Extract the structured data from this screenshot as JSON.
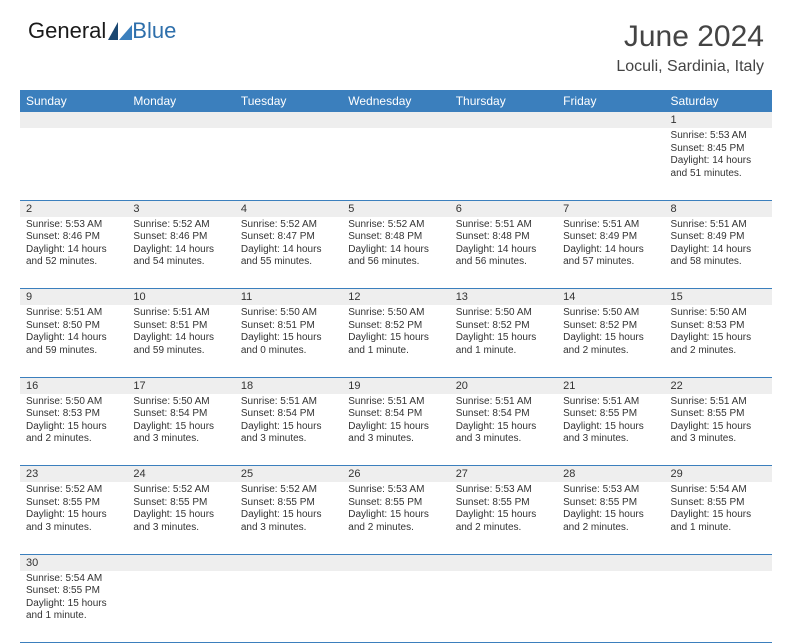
{
  "brand": {
    "name_a": "General",
    "name_b": "Blue"
  },
  "title": {
    "month": "June 2024",
    "location": "Loculi, Sardinia, Italy"
  },
  "colors": {
    "header_bg": "#3b7fbd",
    "header_text": "#ffffff",
    "daynum_bg": "#eeeeee",
    "border": "#3b7fbd",
    "text": "#333333",
    "title_text": "#444444",
    "logo_blue": "#2e6fab"
  },
  "weekdays": [
    "Sunday",
    "Monday",
    "Tuesday",
    "Wednesday",
    "Thursday",
    "Friday",
    "Saturday"
  ],
  "first_weekday_index": 6,
  "days": [
    {
      "n": 1,
      "sr": "5:53 AM",
      "ss": "8:45 PM",
      "dl": "14 hours and 51 minutes."
    },
    {
      "n": 2,
      "sr": "5:53 AM",
      "ss": "8:46 PM",
      "dl": "14 hours and 52 minutes."
    },
    {
      "n": 3,
      "sr": "5:52 AM",
      "ss": "8:46 PM",
      "dl": "14 hours and 54 minutes."
    },
    {
      "n": 4,
      "sr": "5:52 AM",
      "ss": "8:47 PM",
      "dl": "14 hours and 55 minutes."
    },
    {
      "n": 5,
      "sr": "5:52 AM",
      "ss": "8:48 PM",
      "dl": "14 hours and 56 minutes."
    },
    {
      "n": 6,
      "sr": "5:51 AM",
      "ss": "8:48 PM",
      "dl": "14 hours and 56 minutes."
    },
    {
      "n": 7,
      "sr": "5:51 AM",
      "ss": "8:49 PM",
      "dl": "14 hours and 57 minutes."
    },
    {
      "n": 8,
      "sr": "5:51 AM",
      "ss": "8:49 PM",
      "dl": "14 hours and 58 minutes."
    },
    {
      "n": 9,
      "sr": "5:51 AM",
      "ss": "8:50 PM",
      "dl": "14 hours and 59 minutes."
    },
    {
      "n": 10,
      "sr": "5:51 AM",
      "ss": "8:51 PM",
      "dl": "14 hours and 59 minutes."
    },
    {
      "n": 11,
      "sr": "5:50 AM",
      "ss": "8:51 PM",
      "dl": "15 hours and 0 minutes."
    },
    {
      "n": 12,
      "sr": "5:50 AM",
      "ss": "8:52 PM",
      "dl": "15 hours and 1 minute."
    },
    {
      "n": 13,
      "sr": "5:50 AM",
      "ss": "8:52 PM",
      "dl": "15 hours and 1 minute."
    },
    {
      "n": 14,
      "sr": "5:50 AM",
      "ss": "8:52 PM",
      "dl": "15 hours and 2 minutes."
    },
    {
      "n": 15,
      "sr": "5:50 AM",
      "ss": "8:53 PM",
      "dl": "15 hours and 2 minutes."
    },
    {
      "n": 16,
      "sr": "5:50 AM",
      "ss": "8:53 PM",
      "dl": "15 hours and 2 minutes."
    },
    {
      "n": 17,
      "sr": "5:50 AM",
      "ss": "8:54 PM",
      "dl": "15 hours and 3 minutes."
    },
    {
      "n": 18,
      "sr": "5:51 AM",
      "ss": "8:54 PM",
      "dl": "15 hours and 3 minutes."
    },
    {
      "n": 19,
      "sr": "5:51 AM",
      "ss": "8:54 PM",
      "dl": "15 hours and 3 minutes."
    },
    {
      "n": 20,
      "sr": "5:51 AM",
      "ss": "8:54 PM",
      "dl": "15 hours and 3 minutes."
    },
    {
      "n": 21,
      "sr": "5:51 AM",
      "ss": "8:55 PM",
      "dl": "15 hours and 3 minutes."
    },
    {
      "n": 22,
      "sr": "5:51 AM",
      "ss": "8:55 PM",
      "dl": "15 hours and 3 minutes."
    },
    {
      "n": 23,
      "sr": "5:52 AM",
      "ss": "8:55 PM",
      "dl": "15 hours and 3 minutes."
    },
    {
      "n": 24,
      "sr": "5:52 AM",
      "ss": "8:55 PM",
      "dl": "15 hours and 3 minutes."
    },
    {
      "n": 25,
      "sr": "5:52 AM",
      "ss": "8:55 PM",
      "dl": "15 hours and 3 minutes."
    },
    {
      "n": 26,
      "sr": "5:53 AM",
      "ss": "8:55 PM",
      "dl": "15 hours and 2 minutes."
    },
    {
      "n": 27,
      "sr": "5:53 AM",
      "ss": "8:55 PM",
      "dl": "15 hours and 2 minutes."
    },
    {
      "n": 28,
      "sr": "5:53 AM",
      "ss": "8:55 PM",
      "dl": "15 hours and 2 minutes."
    },
    {
      "n": 29,
      "sr": "5:54 AM",
      "ss": "8:55 PM",
      "dl": "15 hours and 1 minute."
    },
    {
      "n": 30,
      "sr": "5:54 AM",
      "ss": "8:55 PM",
      "dl": "15 hours and 1 minute."
    }
  ],
  "labels": {
    "sunrise": "Sunrise:",
    "sunset": "Sunset:",
    "daylight": "Daylight:"
  }
}
